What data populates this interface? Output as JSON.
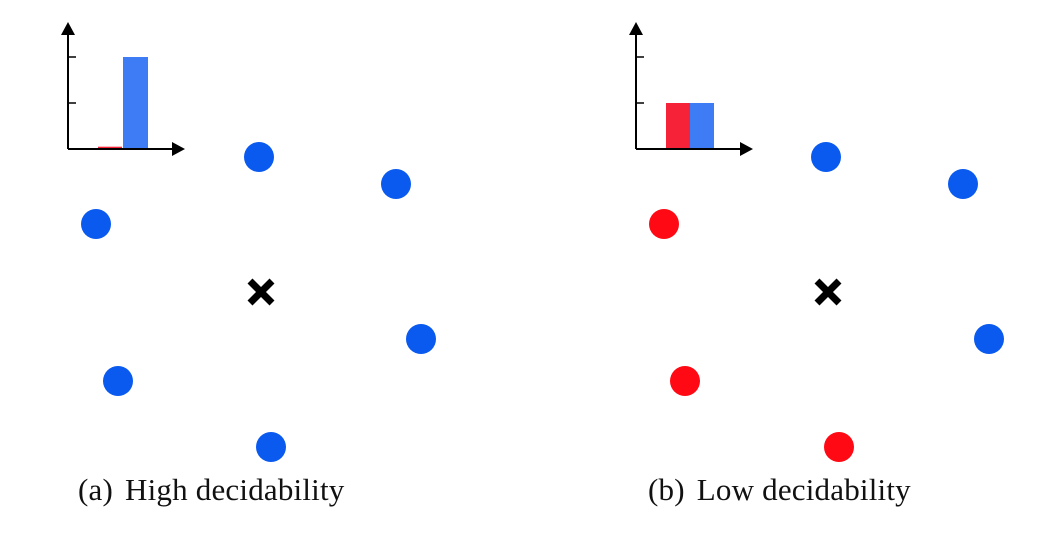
{
  "colors": {
    "blue": "#0a5af0",
    "red": "#ff0a14",
    "bar_blue": "#3d7cf5",
    "bar_red": "#f52238",
    "axis": "#000000",
    "query": "#000000"
  },
  "icons": {
    "query_point": "cross-icon",
    "axis_arrow": "arrow-icon"
  },
  "panels": [
    {
      "label": "(a)",
      "caption": "High decidability",
      "histogram": {
        "red": 0.05,
        "blue": 2.0
      },
      "neighbors": [
        "blue",
        "blue",
        "blue",
        "blue",
        "blue",
        "blue"
      ]
    },
    {
      "label": "(b)",
      "caption": "Low decidability",
      "histogram": {
        "red": 1.0,
        "blue": 1.0
      },
      "neighbors": [
        "blue",
        "blue",
        "red",
        "blue",
        "red",
        "red"
      ]
    }
  ]
}
